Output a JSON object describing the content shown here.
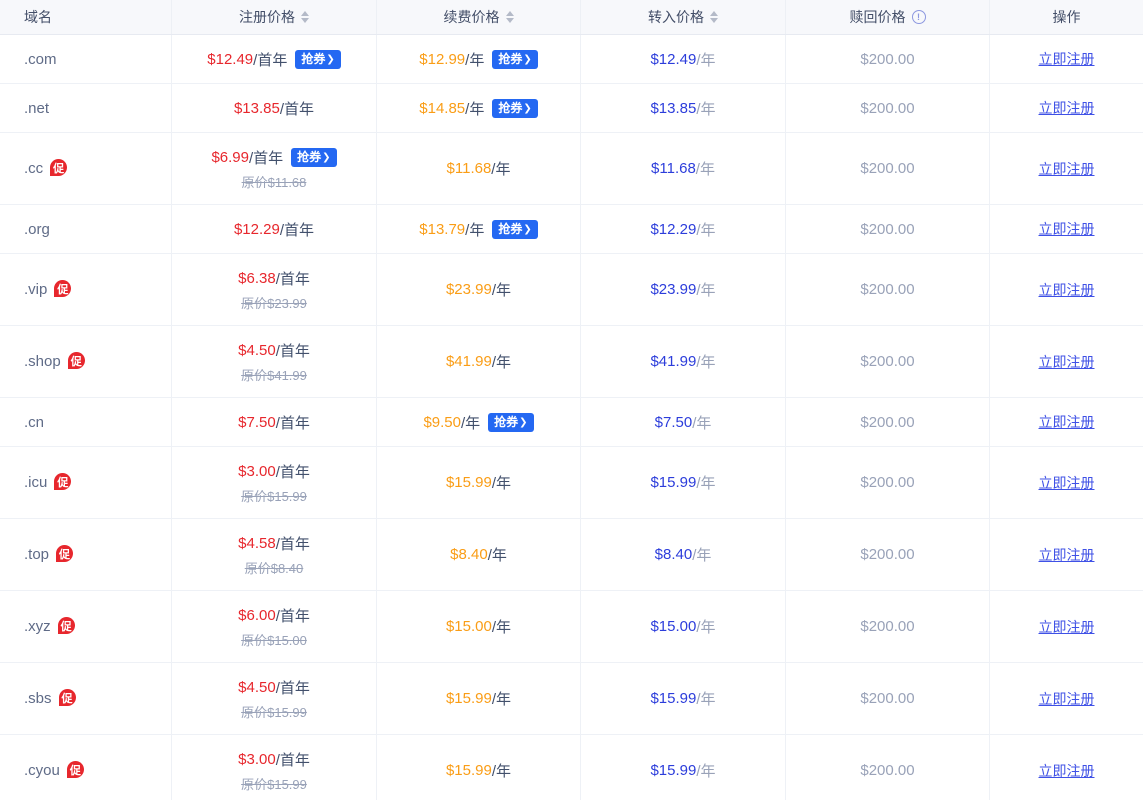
{
  "table": {
    "columns": [
      {
        "label": "域名",
        "sortable": false,
        "info": false
      },
      {
        "label": "注册价格",
        "sortable": true,
        "info": false
      },
      {
        "label": "续费价格",
        "sortable": true,
        "info": false
      },
      {
        "label": "转入价格",
        "sortable": true,
        "info": false
      },
      {
        "label": "赎回价格",
        "sortable": false,
        "info": true
      },
      {
        "label": "操作",
        "sortable": false,
        "info": false
      }
    ],
    "badges": {
      "coupon": "抢券",
      "coupon_chevron": "❯",
      "promo": "促",
      "info_icon_glyph": "!"
    },
    "units": {
      "first_year": "/首年",
      "per_year": "/年"
    },
    "action_label": "立即注册",
    "rows": [
      {
        "domain": ".com",
        "promo": false,
        "reg_price": "$12.49",
        "reg_orig": "",
        "reg_coupon": true,
        "renew_price": "$12.99",
        "renew_coupon": true,
        "transfer_price": "$12.49",
        "redeem_price": "$200.00"
      },
      {
        "domain": ".net",
        "promo": false,
        "reg_price": "$13.85",
        "reg_orig": "",
        "reg_coupon": false,
        "renew_price": "$14.85",
        "renew_coupon": true,
        "transfer_price": "$13.85",
        "redeem_price": "$200.00"
      },
      {
        "domain": ".cc",
        "promo": true,
        "reg_price": "$6.99",
        "reg_orig": "原价$11.68",
        "reg_coupon": true,
        "renew_price": "$11.68",
        "renew_coupon": false,
        "transfer_price": "$11.68",
        "redeem_price": "$200.00"
      },
      {
        "domain": ".org",
        "promo": false,
        "reg_price": "$12.29",
        "reg_orig": "",
        "reg_coupon": false,
        "renew_price": "$13.79",
        "renew_coupon": true,
        "transfer_price": "$12.29",
        "redeem_price": "$200.00"
      },
      {
        "domain": ".vip",
        "promo": true,
        "reg_price": "$6.38",
        "reg_orig": "原价$23.99",
        "reg_coupon": false,
        "renew_price": "$23.99",
        "renew_coupon": false,
        "transfer_price": "$23.99",
        "redeem_price": "$200.00"
      },
      {
        "domain": ".shop",
        "promo": true,
        "reg_price": "$4.50",
        "reg_orig": "原价$41.99",
        "reg_coupon": false,
        "renew_price": "$41.99",
        "renew_coupon": false,
        "transfer_price": "$41.99",
        "redeem_price": "$200.00"
      },
      {
        "domain": ".cn",
        "promo": false,
        "reg_price": "$7.50",
        "reg_orig": "",
        "reg_coupon": false,
        "renew_price": "$9.50",
        "renew_coupon": true,
        "transfer_price": "$7.50",
        "redeem_price": "$200.00"
      },
      {
        "domain": ".icu",
        "promo": true,
        "reg_price": "$3.00",
        "reg_orig": "原价$15.99",
        "reg_coupon": false,
        "renew_price": "$15.99",
        "renew_coupon": false,
        "transfer_price": "$15.99",
        "redeem_price": "$200.00"
      },
      {
        "domain": ".top",
        "promo": true,
        "reg_price": "$4.58",
        "reg_orig": "原价$8.40",
        "reg_coupon": false,
        "renew_price": "$8.40",
        "renew_coupon": false,
        "transfer_price": "$8.40",
        "redeem_price": "$200.00"
      },
      {
        "domain": ".xyz",
        "promo": true,
        "reg_price": "$6.00",
        "reg_orig": "原价$15.00",
        "reg_coupon": false,
        "renew_price": "$15.00",
        "renew_coupon": false,
        "transfer_price": "$15.00",
        "redeem_price": "$200.00"
      },
      {
        "domain": ".sbs",
        "promo": true,
        "reg_price": "$4.50",
        "reg_orig": "原价$15.99",
        "reg_coupon": false,
        "renew_price": "$15.99",
        "renew_coupon": false,
        "transfer_price": "$15.99",
        "redeem_price": "$200.00"
      },
      {
        "domain": ".cyou",
        "promo": true,
        "reg_price": "$3.00",
        "reg_orig": "原价$15.99",
        "reg_coupon": false,
        "renew_price": "$15.99",
        "renew_coupon": false,
        "transfer_price": "$15.99",
        "redeem_price": "$200.00"
      }
    ],
    "colors": {
      "registration_price": "#e7272d",
      "renewal_price": "#fa9d16",
      "transfer_price": "#2c3ddb",
      "muted_gray": "#99a2b8",
      "action_link": "#3f51e6",
      "coupon_badge_bg": "#2468f2",
      "promo_badge_bg": "#e7272d",
      "header_bg": "#f7f8fb"
    }
  }
}
